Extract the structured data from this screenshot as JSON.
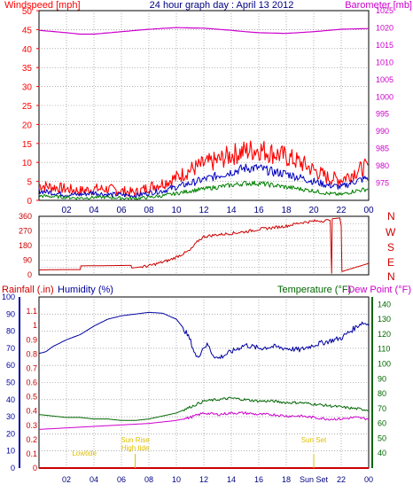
{
  "colors": {
    "background": "#ffffff",
    "frame": "#000000",
    "grid": "#808080",
    "title": "#000080",
    "wind": "#ff0000",
    "wind_mid": "#0000c0",
    "wind_low": "#008000",
    "barometer": "#cc00cc",
    "direction": "#cc0000",
    "dir_labels": "#cc0000",
    "rainfall": "#cc0000",
    "humidity": "#0000a0",
    "temperature": "#006600",
    "dewpoint": "#cc00cc",
    "tide_labels": "#e0c000"
  },
  "header": {
    "left": "Windspeed [mph]",
    "center": "24 hour graph day : April 13 2012",
    "right": "Barometer [mb]"
  },
  "panel3_header": {
    "rainfall": "Rainfall (.in)",
    "humidity": "Humidity (%)",
    "temperature": "Temperature (°F)",
    "dewpoint": "Dew Point (°F)"
  },
  "time_ticks_top": [
    "02",
    "04",
    "06",
    "08",
    "10",
    "12",
    "14",
    "16",
    "18",
    "20",
    "22",
    "00"
  ],
  "time_ticks_bottom": [
    "02",
    "04",
    "06",
    "08",
    "10",
    "12",
    "14",
    "16",
    "18",
    "Sun Set",
    "22",
    "00"
  ],
  "direction_letters": [
    "N",
    "W",
    "S",
    "E",
    "N"
  ],
  "tide_annotations": [
    {
      "label": "Lowtide",
      "hour": 3.3
    },
    {
      "label": "Sun Rise",
      "hour": 7.0
    },
    {
      "label": "High tide",
      "hour": 7.0
    },
    {
      "label": "Sun Set",
      "hour": 20.0
    }
  ],
  "chart_data": [
    {
      "type": "line",
      "title": "24 hour graph day : April 13 2012",
      "x_unit": "hour of day",
      "x_range": [
        0,
        24
      ],
      "grid": true,
      "y_left": {
        "label": "Windspeed [mph]",
        "range": [
          0,
          50
        ],
        "ticks": [
          0,
          5,
          10,
          15,
          20,
          25,
          30,
          35,
          40,
          45,
          50
        ]
      },
      "y_right": {
        "label": "Barometer [mb]",
        "range": [
          970,
          1025
        ],
        "ticks": [
          975,
          980,
          985,
          990,
          995,
          1000,
          1005,
          1010,
          1015,
          1020,
          1025
        ]
      },
      "series": [
        {
          "axis": "left",
          "color_key": "wind",
          "x": [
            0,
            1,
            2,
            3,
            4,
            5,
            6,
            7,
            8,
            9,
            10,
            11,
            12,
            13,
            14,
            15,
            16,
            17,
            18,
            19,
            20,
            21,
            22,
            23,
            24
          ],
          "y": [
            4,
            3.5,
            3,
            2.5,
            3,
            3,
            2.5,
            2,
            3.5,
            4.5,
            6,
            8,
            9.5,
            10.5,
            12,
            13,
            13.5,
            12.5,
            11.5,
            10,
            8,
            6,
            5.5,
            7.5,
            9
          ]
        },
        {
          "axis": "left",
          "color_key": "wind_mid",
          "x": [
            0,
            1,
            2,
            3,
            4,
            5,
            6,
            7,
            8,
            9,
            10,
            11,
            12,
            13,
            14,
            15,
            16,
            17,
            18,
            19,
            20,
            21,
            22,
            23,
            24
          ],
          "y": [
            2.5,
            2,
            1.5,
            1.5,
            2,
            1.5,
            1.5,
            1.2,
            2,
            2.5,
            3.5,
            4.5,
            5.5,
            6.5,
            7.5,
            8.5,
            8.5,
            7.5,
            7,
            6,
            5,
            4,
            3.5,
            5,
            6
          ]
        },
        {
          "axis": "left",
          "color_key": "wind_low",
          "x": [
            0,
            1,
            2,
            3,
            4,
            5,
            6,
            7,
            8,
            9,
            10,
            11,
            12,
            13,
            14,
            15,
            16,
            17,
            18,
            19,
            20,
            21,
            22,
            23,
            24
          ],
          "y": [
            1.2,
            1,
            0.8,
            0.6,
            0.8,
            0.8,
            0.6,
            0.5,
            0.8,
            1.2,
            1.8,
            2.5,
            3,
            3.5,
            4,
            4.5,
            4.5,
            4,
            3.5,
            3,
            2.5,
            1.8,
            1.5,
            2.5,
            3
          ]
        },
        {
          "axis": "right",
          "color_key": "barometer",
          "x": [
            0,
            2,
            3,
            4,
            6,
            8,
            10,
            12,
            14,
            15,
            16,
            18,
            20,
            22,
            24
          ],
          "y": [
            1019.3,
            1018.6,
            1018.2,
            1018.2,
            1018.9,
            1019.6,
            1020.1,
            1019.9,
            1019.3,
            1018.9,
            1018.6,
            1018.4,
            1018.9,
            1019.6,
            1019.8
          ]
        }
      ]
    },
    {
      "type": "line",
      "title": "",
      "x_range": [
        0,
        24
      ],
      "grid": true,
      "y_left": {
        "label": "",
        "range": [
          0,
          360
        ],
        "ticks": [
          0,
          45,
          90,
          135,
          180,
          225,
          270,
          315,
          360
        ]
      },
      "series": [
        {
          "color_key": "direction",
          "x": [
            0,
            1.5,
            3,
            3.05,
            6.7,
            6.75,
            8,
            9.5,
            11,
            11.6,
            12,
            12.8,
            14,
            15,
            16,
            17,
            18,
            19,
            20,
            21.2,
            21.3,
            21.35,
            21.9,
            22.0,
            22.05,
            23,
            24
          ],
          "y": [
            30,
            32,
            32,
            55,
            58,
            42,
            55,
            90,
            150,
            210,
            235,
            245,
            255,
            265,
            280,
            290,
            300,
            320,
            330,
            335,
            10,
            345,
            350,
            300,
            20,
            45,
            70
          ]
        }
      ]
    },
    {
      "type": "line",
      "title": "",
      "x_range": [
        0,
        24
      ],
      "grid": true,
      "y_left": {
        "label": "Rainfall (.in)",
        "range": [
          0,
          1.2
        ],
        "ticks": [
          0,
          0.1,
          0.2,
          0.3,
          0.4,
          0.5,
          0.6,
          0.7,
          0.8,
          0.9,
          1,
          1.1
        ]
      },
      "y_left2": {
        "label": "Humidity (%)",
        "range": [
          0,
          100
        ],
        "ticks": [
          0,
          10,
          20,
          30,
          40,
          50,
          60,
          70,
          80,
          90,
          100
        ]
      },
      "y_right": {
        "label": "Temperature (°F)",
        "range": [
          30,
          145
        ],
        "ticks": [
          40,
          50,
          60,
          70,
          80,
          90,
          100,
          110,
          120,
          130,
          140
        ]
      },
      "series": [
        {
          "name": "Rainfall (.in)",
          "axis": "rain",
          "color_key": "rainfall",
          "x": [
            0,
            24
          ],
          "y": [
            0,
            0
          ]
        },
        {
          "name": "Humidity (%)",
          "axis": "humidity",
          "color_key": "humidity",
          "x": [
            0,
            0.5,
            1,
            2,
            3,
            4,
            5,
            6,
            7,
            8,
            9,
            10,
            10.5,
            11,
            11.3,
            11.5,
            12,
            12.3,
            12.6,
            13,
            14,
            15,
            16,
            17,
            18,
            19,
            20,
            21,
            22,
            23,
            23.5,
            24
          ],
          "y": [
            67,
            68,
            71,
            75,
            78,
            83,
            87,
            89,
            90,
            91,
            90.5,
            87,
            82,
            75,
            68,
            64,
            71,
            72,
            67,
            64,
            68,
            72,
            70,
            71,
            70,
            69,
            72,
            74,
            76,
            82,
            85,
            84
          ]
        },
        {
          "name": "Temperature (°F)",
          "axis": "right",
          "color_key": "temperature",
          "x": [
            0,
            1,
            2,
            3,
            4,
            5,
            6,
            7,
            8,
            9,
            10,
            11,
            12,
            13,
            14,
            15,
            16,
            17,
            18,
            19,
            20,
            21,
            22,
            23,
            24
          ],
          "y": [
            66,
            65,
            64,
            64,
            63,
            63,
            62,
            62,
            63,
            65,
            67,
            71,
            75,
            76,
            77,
            76,
            75,
            75,
            74,
            74,
            73,
            72,
            71,
            70,
            69
          ]
        },
        {
          "name": "Dew Point (°F)",
          "axis": "right",
          "color_key": "dewpoint",
          "x": [
            0,
            1,
            2,
            3,
            4,
            5,
            6,
            7,
            8,
            9,
            10,
            11,
            12,
            13,
            14,
            15,
            16,
            17,
            18,
            19,
            20,
            21,
            22,
            23,
            24
          ],
          "y": [
            56,
            56.5,
            57,
            57.5,
            58,
            58.5,
            59,
            59.5,
            60,
            61,
            62,
            64,
            67,
            66,
            67,
            67,
            66,
            66,
            65,
            65,
            64,
            63,
            63,
            64,
            63
          ]
        }
      ]
    }
  ]
}
